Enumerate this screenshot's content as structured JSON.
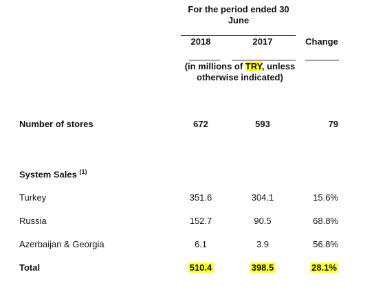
{
  "header": {
    "period_line1": "For the period ended 30",
    "period_line2": "June",
    "col_2018": "2018",
    "col_2017": "2017",
    "col_change": "Change",
    "units_pre": "(in millions of ",
    "units_currency": "TRY",
    "units_post": ", unless",
    "units_line2": "otherwise indicated)"
  },
  "rows": {
    "stores": {
      "label": "Number of stores",
      "v2018": "672",
      "v2017": "593",
      "change": "79"
    },
    "system_sales": {
      "label": "System Sales",
      "footnote": "(1)"
    },
    "turkey": {
      "label": "Turkey",
      "v2018": "351.6",
      "v2017": "304.1",
      "change": "15.6%"
    },
    "russia": {
      "label": "Russia",
      "v2018": "152.7",
      "v2017": "90.5",
      "change": "68.8%"
    },
    "azerbaijan": {
      "label": "Azerbaijan & Georgia",
      "v2018": "6.1",
      "v2017": "3.9",
      "change": "56.8%"
    },
    "total": {
      "label": "Total",
      "v2018": "510.4",
      "v2017": "398.5",
      "change": "28.1%"
    }
  },
  "colors": {
    "highlight": "#ffff3a"
  }
}
